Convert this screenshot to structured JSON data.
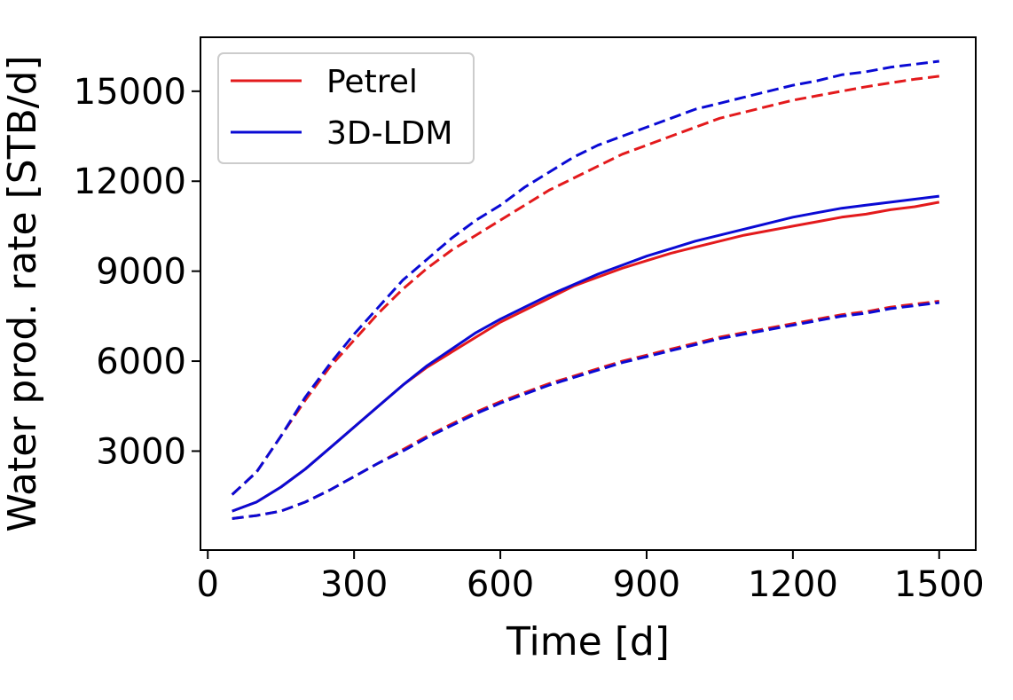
{
  "chart_data": {
    "type": "line",
    "title": "",
    "xlabel": "Time [d]",
    "ylabel": "Water prod. rate [STB/d]",
    "xlim": [
      -15,
      1575
    ],
    "ylim": [
      -300,
      16800
    ],
    "xticks": [
      0,
      300,
      600,
      900,
      1200,
      1500
    ],
    "yticks": [
      3000,
      6000,
      9000,
      12000,
      15000
    ],
    "xtick_labels": [
      "0",
      "300",
      "600",
      "900",
      "1200",
      "1500"
    ],
    "ytick_labels": [
      "3000",
      "6000",
      "9000",
      "12000",
      "15000"
    ],
    "grid": false,
    "legend": {
      "placement": "upper-left",
      "entries": [
        "Petrel",
        "3D-LDM"
      ]
    },
    "colors": {
      "Petrel": "#e31a1c",
      "3D-LDM": "#0a0ad4"
    },
    "x": [
      50,
      100,
      150,
      200,
      250,
      300,
      350,
      400,
      450,
      500,
      550,
      600,
      650,
      700,
      750,
      800,
      850,
      900,
      950,
      1000,
      1050,
      1100,
      1150,
      1200,
      1250,
      1300,
      1350,
      1400,
      1450,
      1500
    ],
    "series": [
      {
        "name": "Petrel",
        "style": "dashed",
        "group": "high",
        "values": [
          1550,
          2300,
          3500,
          4700,
          5800,
          6700,
          7600,
          8400,
          9100,
          9700,
          10200,
          10700,
          11200,
          11700,
          12100,
          12500,
          12900,
          13200,
          13500,
          13800,
          14100,
          14300,
          14500,
          14700,
          14850,
          15000,
          15150,
          15280,
          15400,
          15500
        ]
      },
      {
        "name": "3D-LDM",
        "style": "dashed",
        "group": "high",
        "values": [
          1550,
          2300,
          3500,
          4800,
          5900,
          6900,
          7800,
          8700,
          9400,
          10100,
          10700,
          11200,
          11800,
          12300,
          12800,
          13200,
          13500,
          13800,
          14100,
          14400,
          14600,
          14800,
          15000,
          15200,
          15350,
          15550,
          15650,
          15800,
          15900,
          16000
        ]
      },
      {
        "name": "Petrel",
        "style": "solid",
        "group": "mid",
        "values": [
          1000,
          1300,
          1800,
          2400,
          3100,
          3800,
          4500,
          5200,
          5800,
          6300,
          6800,
          7300,
          7700,
          8100,
          8500,
          8800,
          9100,
          9350,
          9600,
          9800,
          10000,
          10200,
          10350,
          10500,
          10650,
          10800,
          10900,
          11050,
          11150,
          11300
        ]
      },
      {
        "name": "3D-LDM",
        "style": "solid",
        "group": "mid",
        "values": [
          1000,
          1300,
          1800,
          2400,
          3100,
          3800,
          4500,
          5200,
          5850,
          6400,
          6950,
          7400,
          7800,
          8200,
          8550,
          8900,
          9200,
          9500,
          9750,
          10000,
          10200,
          10400,
          10600,
          10800,
          10950,
          11100,
          11200,
          11300,
          11400,
          11500
        ]
      },
      {
        "name": "Petrel",
        "style": "dashed",
        "group": "low",
        "values": [
          750,
          850,
          1000,
          1300,
          1700,
          2150,
          2600,
          3050,
          3500,
          3900,
          4300,
          4650,
          4950,
          5250,
          5500,
          5750,
          6000,
          6200,
          6400,
          6600,
          6800,
          6950,
          7100,
          7250,
          7400,
          7550,
          7650,
          7800,
          7900,
          8000
        ]
      },
      {
        "name": "3D-LDM",
        "style": "dashed",
        "group": "low",
        "values": [
          750,
          850,
          1000,
          1300,
          1700,
          2150,
          2600,
          3000,
          3450,
          3850,
          4250,
          4600,
          4900,
          5200,
          5450,
          5700,
          5950,
          6150,
          6350,
          6550,
          6750,
          6900,
          7050,
          7200,
          7350,
          7500,
          7600,
          7750,
          7850,
          7950
        ]
      }
    ]
  }
}
